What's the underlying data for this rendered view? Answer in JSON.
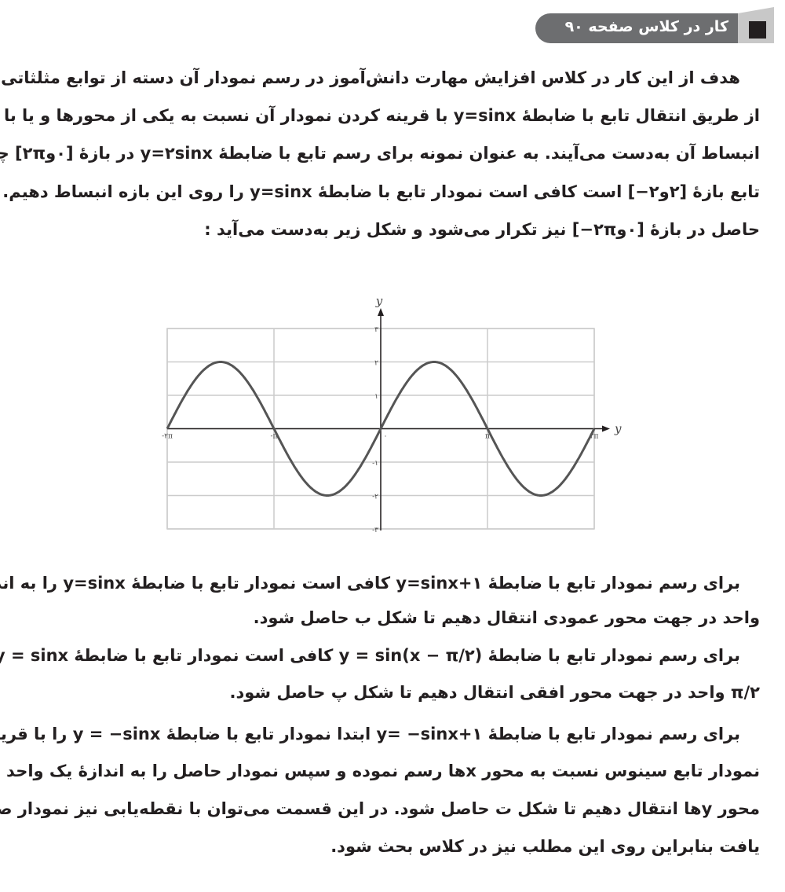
{
  "header": {
    "title": "کار در کلاس صفحه ۹۰"
  },
  "para1": [
    "هدف از این کار در کلاس افزایش مهارت دانش‌آموز در رسم نمودار آن دسته از توابع مثلثاتی است که",
    "از طریق انتقال تابع با ضابطهٔ ⁦y=sinx⁩ با قرینه کردن نمودار آن نسبت به یکی از محورها و یا با انقباض یا",
    "انبساط آن به‌دست می‌آیند. به عنوان نمونه برای رسم تابع با ضابطهٔ ⁦y=۲sinx⁩ در بازهٔ [۰و۲π] چون برد این",
    "تابع بازهٔ [۲و۲−] است کافی است نمودار تابع با ضابطهٔ ⁦y=sinx⁩ را روی این بازه انبساط دهیم. نمودار",
    "حاصل در بازهٔ [۰و۲π−] نیز تکرار می‌شود و شکل زیر به‌دست می‌آید :"
  ],
  "para2": [
    "برای رسم نمودار تابع با ضابطهٔ ⁦y=sinx+۱⁩ کافی است نمودار تابع با ضابطهٔ ⁦y=sinx⁩ را به اندازه یک",
    "واحد در جهت محور عمودی انتقال دهیم تا شکل ب حاصل شود.",
    "برای رسم نمودار تابع با ضابطهٔ ⁦y = sin(x − π/۲)⁩ کافی است نمودار تابع با ضابطهٔ ⁦y = sinx⁩ را به اندازه",
    "⁦π/۲⁩ واحد در جهت محور افقی انتقال دهیم تا شکل پ حاصل شود.",
    "برای رسم نمودار تابع با ضابطهٔ ⁦y= −sinx+۱⁩ ابتدا نمودار تابع با ضابطهٔ ⁦y = −sinx⁩ را با قرینه‌کردن",
    "نمودار تابع سینوس نسبت به محور xها رسم نموده و سپس نمودار حاصل را به اندازهٔ یک واحد در جهت",
    "محور yها انتقال دهیم تا شکل ت حاصل شود. در این قسمت می‌توان با نقطه‌یابی نیز نمودار صحیح را",
    "یافت بنابراین روی این مطلب نیز در کلاس بحث شود."
  ],
  "chart_data": {
    "type": "line",
    "function": "y=2sinx",
    "xlabel": "y",
    "ylabel": "y",
    "xlim_pi": [
      -2,
      2
    ],
    "ylim": [
      -3,
      3
    ],
    "x_ticks": [
      {
        "v": -2,
        "label": "-۲π"
      },
      {
        "v": -1,
        "label": "-π"
      },
      {
        "v": 0,
        "label": "۰"
      },
      {
        "v": 1,
        "label": "π"
      },
      {
        "v": 2,
        "label": "۲π"
      }
    ],
    "y_ticks": [
      {
        "v": 3,
        "label": "۳"
      },
      {
        "v": 2,
        "label": "۲"
      },
      {
        "v": 1,
        "label": "۱"
      },
      {
        "v": -1,
        "label": "-۱"
      },
      {
        "v": -2,
        "label": "-۲"
      },
      {
        "v": -3,
        "label": "-۳"
      }
    ],
    "grid": true,
    "colors": {
      "curve": "#555555",
      "grid": "#cccccc",
      "axis": "#231f20"
    }
  }
}
